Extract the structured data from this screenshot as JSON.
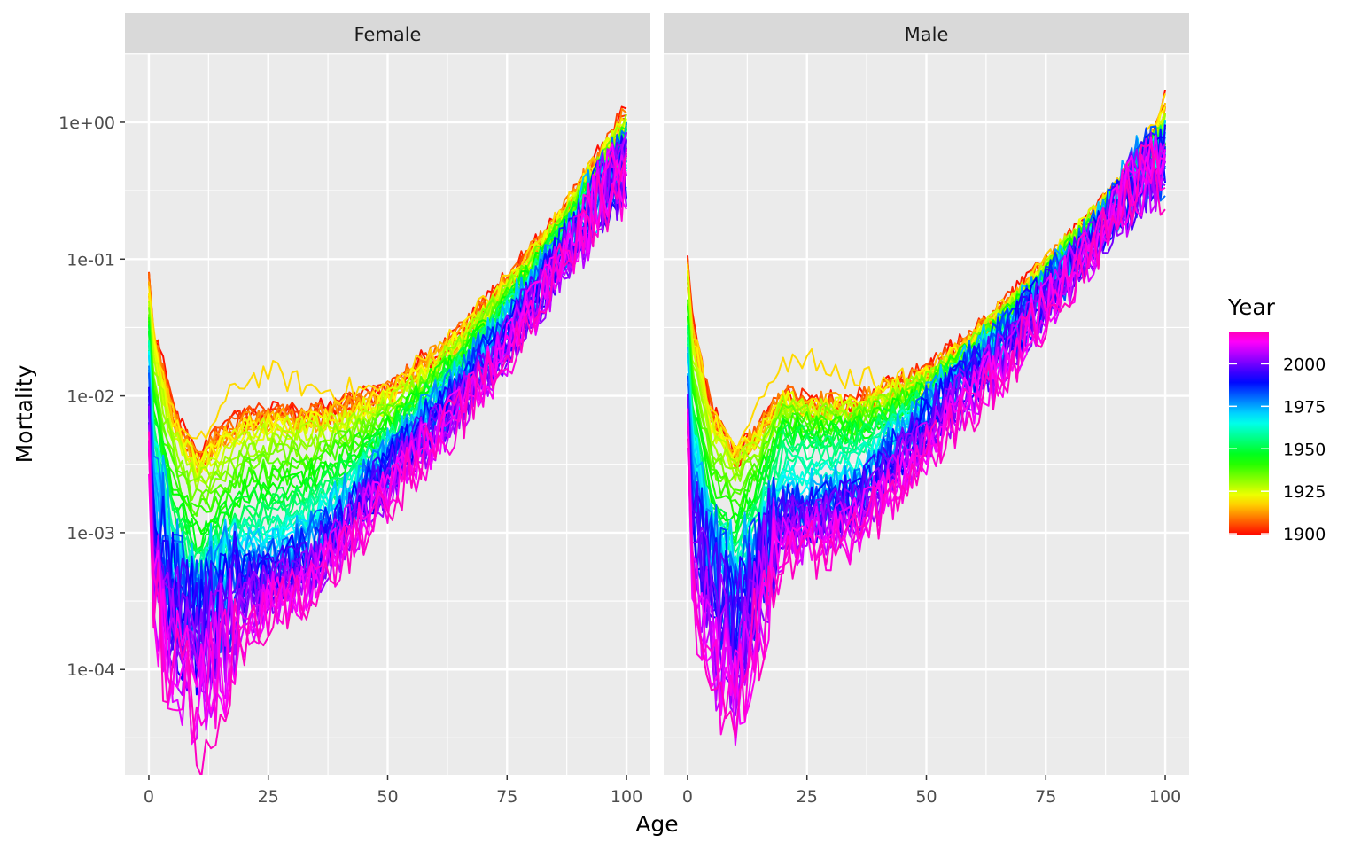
{
  "chart_data": {
    "type": "line",
    "facet_variable": "sex",
    "panels": [
      {
        "label": "Female"
      },
      {
        "label": "Male"
      }
    ],
    "xlabel": "Age",
    "ylabel": "Mortality",
    "x_ticks": [
      0,
      25,
      50,
      75,
      100
    ],
    "x_tick_labels": [
      "0",
      "25",
      "50",
      "75",
      "100"
    ],
    "xlim": [
      -5,
      105
    ],
    "y_scale": "log10",
    "y_ticks": [
      0.0001,
      0.001,
      0.01,
      0.1,
      1
    ],
    "y_tick_labels": [
      "1e-04",
      "1e-03",
      "1e-02",
      "1e-01",
      "1e+00"
    ],
    "ylim": [
      1.7e-05,
      3.2
    ],
    "grid": true,
    "background": "#EBEBEB",
    "strip_background": "#D9D9D9",
    "color_scale": {
      "title": "Year",
      "type": "rainbow",
      "range": [
        1899,
        2019
      ],
      "breaks": [
        1900,
        1925,
        1950,
        1975,
        2000
      ],
      "break_labels": [
        "1900",
        "1925",
        "1950",
        "1975",
        "2000"
      ]
    },
    "years_first": 1900,
    "years_last": 2019,
    "year_step": 2,
    "series_model": {
      "description_of_curves": "one line per year; mortality by age 0-100",
      "female_anchor_years": [
        1900,
        1918,
        1925,
        1950,
        1975,
        2000,
        2019
      ],
      "female_anchor_points": {
        "ages": [
          0,
          1,
          5,
          10,
          15,
          20,
          25,
          35,
          50,
          65,
          75,
          85,
          95,
          100
        ],
        "1900": [
          0.075,
          0.03,
          0.008,
          0.0035,
          0.0055,
          0.007,
          0.0075,
          0.0075,
          0.011,
          0.03,
          0.07,
          0.18,
          0.55,
          1.2
        ],
        "1918": [
          0.07,
          0.03,
          0.007,
          0.004,
          0.008,
          0.013,
          0.015,
          0.011,
          0.011,
          0.03,
          0.07,
          0.18,
          0.55,
          1.0
        ],
        "1925": [
          0.05,
          0.02,
          0.006,
          0.003,
          0.004,
          0.0055,
          0.006,
          0.006,
          0.009,
          0.025,
          0.06,
          0.16,
          0.5,
          0.9
        ],
        "1950": [
          0.025,
          0.006,
          0.0015,
          0.0007,
          0.001,
          0.0015,
          0.0015,
          0.002,
          0.005,
          0.017,
          0.045,
          0.13,
          0.4,
          0.7
        ],
        "1975": [
          0.015,
          0.003,
          0.0005,
          0.0003,
          0.0004,
          0.0006,
          0.0006,
          0.001,
          0.0035,
          0.012,
          0.035,
          0.1,
          0.33,
          0.5
        ],
        "2000": [
          0.006,
          0.0005,
          0.00025,
          0.00015,
          0.00025,
          0.00035,
          0.0004,
          0.0006,
          0.0025,
          0.009,
          0.025,
          0.08,
          0.3,
          0.45
        ],
        "2019": [
          0.0035,
          0.0003,
          8e-05,
          4e-05,
          8e-05,
          0.00015,
          0.00025,
          0.0004,
          0.0018,
          0.007,
          0.02,
          0.07,
          0.3,
          0.4
        ]
      },
      "male_anchor_years": [
        1900,
        1918,
        1925,
        1950,
        1975,
        2000,
        2019
      ],
      "male_anchor_points": {
        "ages": [
          0,
          1,
          5,
          10,
          15,
          20,
          25,
          35,
          50,
          65,
          75,
          85,
          95,
          100
        ],
        "1900": [
          0.095,
          0.035,
          0.008,
          0.0035,
          0.006,
          0.01,
          0.009,
          0.009,
          0.015,
          0.04,
          0.09,
          0.2,
          0.5,
          1.3
        ],
        "1918": [
          0.09,
          0.03,
          0.007,
          0.004,
          0.01,
          0.018,
          0.02,
          0.013,
          0.013,
          0.04,
          0.09,
          0.2,
          0.5,
          1.6
        ],
        "1925": [
          0.065,
          0.025,
          0.006,
          0.0035,
          0.005,
          0.009,
          0.008,
          0.008,
          0.013,
          0.035,
          0.085,
          0.2,
          0.5,
          1.0
        ],
        "1950": [
          0.03,
          0.007,
          0.0015,
          0.0009,
          0.002,
          0.005,
          0.005,
          0.005,
          0.01,
          0.03,
          0.07,
          0.17,
          0.5,
          0.8
        ],
        "1975": [
          0.018,
          0.004,
          0.0008,
          0.0004,
          0.0006,
          0.0015,
          0.0015,
          0.002,
          0.008,
          0.025,
          0.06,
          0.15,
          0.45,
          0.6
        ],
        "2000": [
          0.008,
          0.0008,
          0.0003,
          0.00015,
          0.0005,
          0.0012,
          0.0012,
          0.0015,
          0.006,
          0.02,
          0.05,
          0.13,
          0.4,
          0.45
        ],
        "2019": [
          0.0045,
          0.0004,
          8e-05,
          4e-05,
          0.0002,
          0.0006,
          0.0007,
          0.0009,
          0.0035,
          0.013,
          0.04,
          0.12,
          0.4,
          0.42
        ]
      },
      "male_1925_age100_drop_to": 1.7e-05
    }
  }
}
